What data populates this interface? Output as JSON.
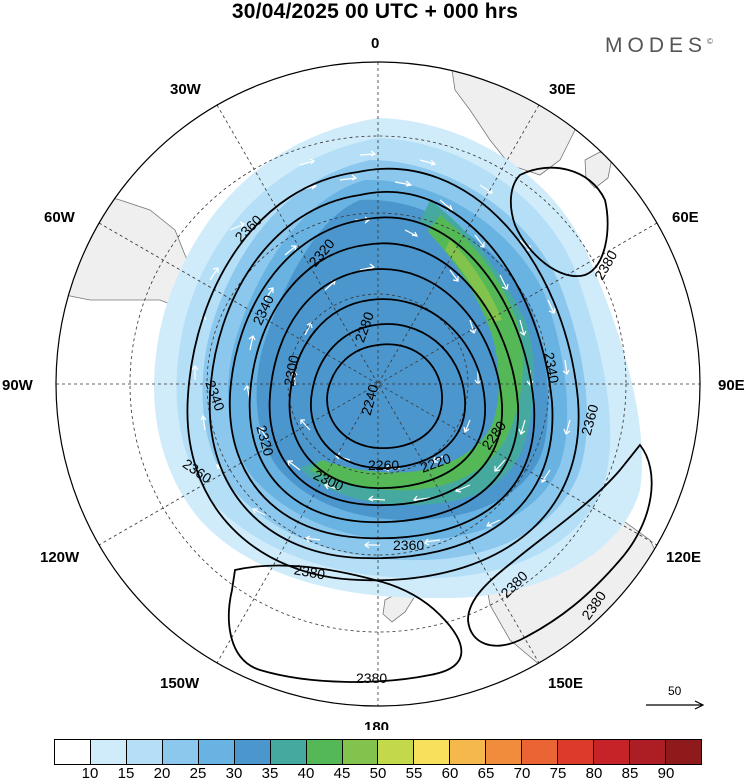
{
  "header": {
    "title": "30/04/2025  00 UTC  + 000 hrs",
    "brand": "MODES",
    "brand_mark": "©"
  },
  "map": {
    "longitude_labels": {
      "lon_0": "0",
      "lon_30e": "30E",
      "lon_60e": "60E",
      "lon_90e": "90E",
      "lon_120e": "120E",
      "lon_150e": "150E",
      "lon_180": "180",
      "lon_150w": "150W",
      "lon_120w": "120W",
      "lon_90w": "90W",
      "lon_60w": "60W",
      "lon_30w": "30W"
    },
    "contour_labels": {
      "c1": "2360",
      "c2": "2320",
      "c3": "2340",
      "c4": "2280",
      "c5": "2300",
      "c6": "2340",
      "c7": "2240",
      "c8": "2320",
      "c9": "2360",
      "c10": "2260",
      "c11": "2300",
      "c12": "2220",
      "c13": "2280",
      "c14": "2340",
      "c15": "2360",
      "c16": "2380",
      "c17": "2360",
      "c18": "2380",
      "c19": "2380",
      "c20": "2380",
      "c21": "2380"
    },
    "reference_vector": "50",
    "colors": {
      "land": "#efefef",
      "coast": "#666666",
      "contour": "#000000",
      "wind_vectors": "#ffffff"
    }
  },
  "colorbar": {
    "colors": [
      "#ffffff",
      "#d0ecfa",
      "#b4dff7",
      "#8cc8ee",
      "#69b3e2",
      "#4c96ce",
      "#46a9a0",
      "#55b857",
      "#82c34d",
      "#c3d94b",
      "#f7e15c",
      "#f5b84d",
      "#f08c3c",
      "#ea6434",
      "#dd3a2c",
      "#c52328",
      "#ac1e24",
      "#8e1a1c"
    ],
    "ticks": [
      "10",
      "15",
      "20",
      "25",
      "30",
      "35",
      "40",
      "45",
      "50",
      "55",
      "60",
      "65",
      "70",
      "75",
      "80",
      "85",
      "90"
    ]
  }
}
